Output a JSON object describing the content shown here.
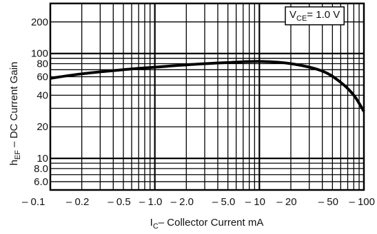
{
  "chart_data": {
    "type": "line",
    "xscale": "log",
    "yscale": "log",
    "xlim": [
      0.1,
      100
    ],
    "ylim": [
      5,
      300
    ],
    "grid": true,
    "xlabel_main": "I",
    "xlabel_sub": "C",
    "xlabel_rest": "Collector Current   mA",
    "ylabel_main": "h",
    "ylabel_sub": "EF",
    "ylabel_rest": " – DC Current Gain",
    "annotation_main": "V",
    "annotation_sub": "CE",
    "annotation_rest": "= 1.0 V",
    "xticks": [
      {
        "v": 0.1,
        "label": "– 0.1"
      },
      {
        "v": 0.2,
        "label": "– 0.2"
      },
      {
        "v": 0.5,
        "label": "– 0.5"
      },
      {
        "v": 1.0,
        "label": "– 1.0"
      },
      {
        "v": 2.0,
        "label": "– 2.0"
      },
      {
        "v": 5.0,
        "label": "– 5.0"
      },
      {
        "v": 10,
        "label": "– 10"
      },
      {
        "v": 20,
        "label": "– 20"
      },
      {
        "v": 50,
        "label": "– 50"
      },
      {
        "v": 100,
        "label": "– 100"
      }
    ],
    "yticks": [
      {
        "v": 6,
        "label": "6.0"
      },
      {
        "v": 8,
        "label": "8.0"
      },
      {
        "v": 10,
        "label": "10"
      },
      {
        "v": 20,
        "label": "20"
      },
      {
        "v": 40,
        "label": "40"
      },
      {
        "v": 60,
        "label": "60"
      },
      {
        "v": 80,
        "label": "80"
      },
      {
        "v": 100,
        "label": "100"
      },
      {
        "v": 200,
        "label": "200"
      }
    ],
    "series": [
      {
        "x": [
          0.1,
          0.2,
          0.5,
          1.0,
          2.0,
          5.0,
          10,
          20,
          40,
          60,
          80,
          100
        ],
        "y": [
          58,
          64,
          70,
          74,
          78,
          82,
          84,
          80,
          68,
          53,
          40,
          28
        ]
      }
    ]
  }
}
